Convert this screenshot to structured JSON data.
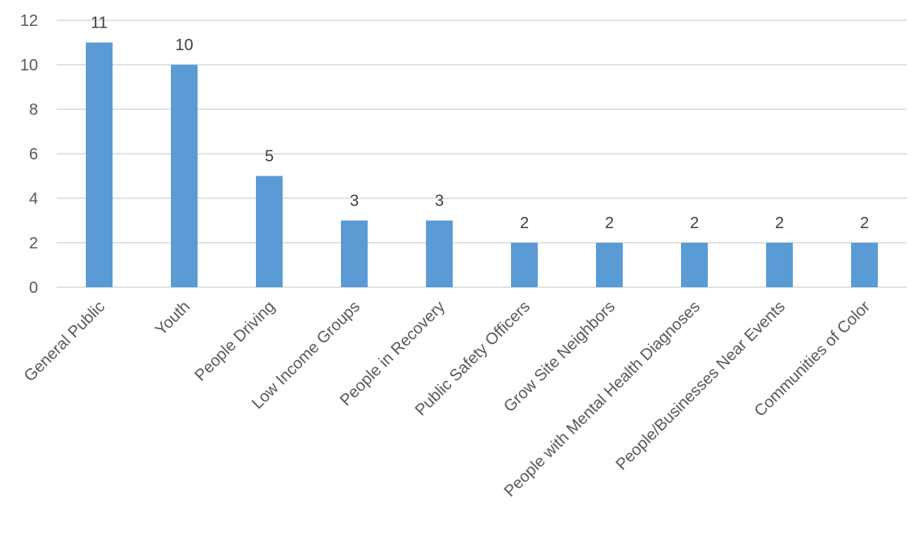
{
  "chart_data": {
    "type": "bar",
    "categories": [
      "General Public",
      "Youth",
      "People Driving",
      "Low Income Groups",
      "People in Recovery",
      "Public Safety Officers",
      "Grow Site Neighbors",
      "People with Mental Health Diagnoses",
      "People/Businesses Near Events",
      "Communities of Color"
    ],
    "values": [
      11,
      10,
      5,
      3,
      3,
      2,
      2,
      2,
      2,
      2
    ],
    "title": "",
    "xlabel": "",
    "ylabel": "",
    "ylim": [
      0,
      12
    ],
    "yticks": [
      0,
      2,
      4,
      6,
      8,
      10,
      12
    ],
    "grid": true,
    "legend": "none",
    "data_labels": true,
    "bar_color": "#5b9bd5",
    "grid_color": "#d9d9d9",
    "text_color": "#595959"
  }
}
